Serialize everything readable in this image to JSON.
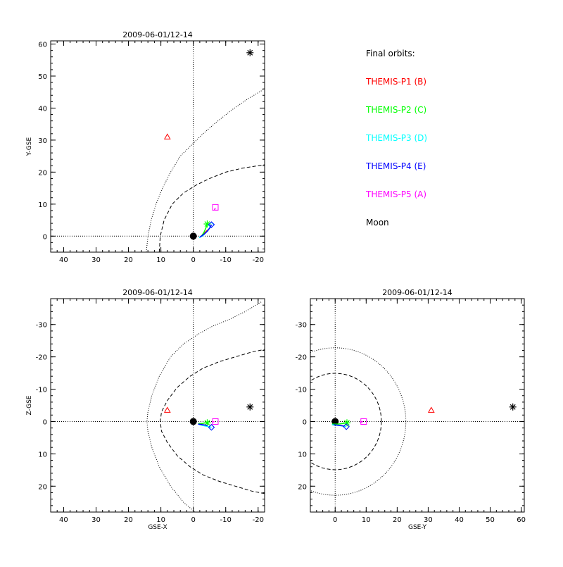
{
  "chart_data": [
    {
      "id": "xy",
      "type": "scatter",
      "title": "2009-06-01/12-14",
      "xlabel": "",
      "ylabel": "Y-GSE",
      "xlim": [
        44,
        -22
      ],
      "ylim": [
        61,
        -5
      ],
      "xticks": [
        40,
        30,
        20,
        10,
        0,
        -10,
        -20
      ],
      "yticks": [
        0,
        10,
        20,
        30,
        40,
        50,
        60
      ],
      "xtick_labels": [
        "40",
        "30",
        "20",
        "10",
        "0",
        "-10",
        "-20"
      ],
      "ytick_labels": [
        "0",
        "10",
        "20",
        "30",
        "40",
        "50",
        "60"
      ],
      "reference_lines": [
        {
          "axis": "x",
          "value": 0
        },
        {
          "axis": "y",
          "value": 0
        }
      ],
      "earth": [
        0,
        0
      ],
      "bow_shock": {
        "style": "dotted",
        "points": [
          [
            14.5,
            -5
          ],
          [
            14,
            0
          ],
          [
            13,
            5
          ],
          [
            11.5,
            10
          ],
          [
            9.5,
            15
          ],
          [
            7,
            20
          ],
          [
            4,
            25
          ],
          [
            0.5,
            28.5
          ],
          [
            -3,
            32
          ],
          [
            -7,
            35.5
          ],
          [
            -12,
            39.5
          ],
          [
            -17,
            43
          ],
          [
            -22,
            46
          ]
        ]
      },
      "magnetopause": {
        "style": "dashed",
        "points": [
          [
            10.5,
            -5
          ],
          [
            10.2,
            0
          ],
          [
            9,
            5
          ],
          [
            6.5,
            10
          ],
          [
            3,
            13.5
          ],
          [
            -1,
            16
          ],
          [
            -5,
            18
          ],
          [
            -10,
            20
          ],
          [
            -15,
            21.2
          ],
          [
            -20,
            22
          ],
          [
            -22,
            22.3
          ]
        ]
      },
      "orbits": [
        {
          "name": "THEMIS-P1",
          "color": "#ff0000",
          "points": [
            [
              -3,
              0.5
            ],
            [
              -4.5,
              2
            ]
          ],
          "marker": {
            "shape": "triangle",
            "at": [
              8,
              31
            ]
          }
        },
        {
          "name": "THEMIS-P2",
          "color": "#00ff00",
          "points": [
            [
              -2.5,
              0
            ],
            [
              -3.3,
              1.2
            ],
            [
              -3.9,
              2.6
            ],
            [
              -4.3,
              3.8
            ]
          ],
          "marker": {
            "shape": "asterisk",
            "at": [
              -4.3,
              3.8
            ]
          }
        },
        {
          "name": "THEMIS-P3",
          "color": "#00ffff",
          "points": [
            [
              -1.8,
              -0.5
            ],
            [
              -3,
              0.2
            ],
            [
              -4.2,
              1.4
            ],
            [
              -5.2,
              2.8
            ],
            [
              -5.5,
              3.5
            ]
          ],
          "marker": {
            "shape": "diamond",
            "at": [
              -5.5,
              3.5
            ]
          }
        },
        {
          "name": "THEMIS-P4",
          "color": "#0000ff",
          "points": [
            [
              -2,
              -0.3
            ],
            [
              -3.2,
              0.5
            ],
            [
              -4.4,
              1.6
            ],
            [
              -5.3,
              2.9
            ],
            [
              -5.6,
              3.6
            ]
          ],
          "marker": {
            "shape": "diamond",
            "at": [
              -5.6,
              3.6
            ]
          }
        },
        {
          "name": "THEMIS-P5",
          "color": "#ff00ff",
          "points": [
            [
              -6.5,
              8.2
            ],
            [
              -6.8,
              8.8
            ]
          ],
          "marker": {
            "shape": "square",
            "at": [
              -6.8,
              9
            ]
          }
        },
        {
          "name": "Moon",
          "color": "#000000",
          "points": [],
          "marker": {
            "shape": "asterisk",
            "at": [
              -17.5,
              57.3
            ]
          }
        }
      ]
    },
    {
      "id": "xz",
      "type": "scatter",
      "title": "2009-06-01/12-14",
      "xlabel": "GSE-X",
      "ylabel": "Z-GSE",
      "xlim": [
        44,
        -22
      ],
      "ylim": [
        -38,
        28
      ],
      "xticks": [
        40,
        30,
        20,
        10,
        0,
        -10,
        -20
      ],
      "yticks": [
        20,
        10,
        0,
        -10,
        -20,
        -30
      ],
      "xtick_labels": [
        "40",
        "30",
        "20",
        "10",
        "0",
        "-10",
        "-20"
      ],
      "ytick_labels": [
        "20",
        "10",
        "0",
        "-10",
        "-20",
        "-30"
      ],
      "reference_lines": [
        {
          "axis": "x",
          "value": 0
        },
        {
          "axis": "y",
          "value": 0
        }
      ],
      "earth": [
        0,
        0
      ],
      "bow_shock": {
        "style": "dotted",
        "points": [
          [
            -0.5,
            28
          ],
          [
            3,
            25
          ],
          [
            7,
            20
          ],
          [
            10.5,
            14
          ],
          [
            12.8,
            8
          ],
          [
            14,
            3
          ],
          [
            14.3,
            0
          ],
          [
            14,
            -3
          ],
          [
            12.8,
            -8
          ],
          [
            10.5,
            -14
          ],
          [
            7,
            -20
          ],
          [
            3,
            -24
          ],
          [
            -1.5,
            -27
          ],
          [
            -6,
            -29.5
          ],
          [
            -11,
            -31.5
          ],
          [
            -16,
            -34
          ],
          [
            -21,
            -37
          ]
        ]
      },
      "magnetopause": {
        "style": "dashed",
        "points": [
          [
            -22,
            22.3
          ],
          [
            -18,
            21.5
          ],
          [
            -13,
            20
          ],
          [
            -8,
            18.5
          ],
          [
            -3,
            16.5
          ],
          [
            1,
            14
          ],
          [
            5,
            10.5
          ],
          [
            8,
            6.5
          ],
          [
            9.8,
            3
          ],
          [
            10.2,
            0
          ],
          [
            9.8,
            -3
          ],
          [
            8,
            -6.5
          ],
          [
            5,
            -10.5
          ],
          [
            1,
            -14
          ],
          [
            -3,
            -16.5
          ],
          [
            -8,
            -18.5
          ],
          [
            -13,
            -20
          ],
          [
            -18,
            -21.5
          ],
          [
            -22,
            -22.3
          ]
        ]
      },
      "orbits": [
        {
          "name": "THEMIS-P1",
          "color": "#ff0000",
          "points": [],
          "marker": {
            "shape": "triangle",
            "at": [
              8,
              -3.5
            ]
          }
        },
        {
          "name": "THEMIS-P2",
          "color": "#00ff00",
          "points": [
            [
              -1.5,
              0.6
            ],
            [
              -2.8,
              0.6
            ],
            [
              -3.8,
              0.4
            ],
            [
              -4.3,
              0.4
            ]
          ],
          "marker": {
            "shape": "asterisk",
            "at": [
              -4.3,
              0.4
            ]
          }
        },
        {
          "name": "THEMIS-P3",
          "color": "#00ffff",
          "points": [
            [
              -1.5,
              0.8
            ],
            [
              -2.8,
              1.2
            ],
            [
              -4.2,
              1.5
            ],
            [
              -5.6,
              1.8
            ]
          ],
          "marker": {
            "shape": "diamond",
            "at": [
              -5.6,
              1.8
            ]
          }
        },
        {
          "name": "THEMIS-P4",
          "color": "#0000ff",
          "points": [
            [
              -1.5,
              0.8
            ],
            [
              -3,
              1
            ],
            [
              -4.4,
              1.2
            ]
          ],
          "marker": {
            "shape": "diamond",
            "at": [
              -5.6,
              1.8
            ]
          }
        },
        {
          "name": "THEMIS-P5",
          "color": "#ff00ff",
          "points": [
            [
              -5.8,
              0.2
            ],
            [
              -6.5,
              0
            ]
          ],
          "marker": {
            "shape": "square",
            "at": [
              -6.8,
              0
            ]
          }
        },
        {
          "name": "Moon",
          "color": "#000000",
          "points": [],
          "marker": {
            "shape": "asterisk",
            "at": [
              -17.5,
              -4.5
            ]
          }
        }
      ]
    },
    {
      "id": "yz",
      "type": "scatter",
      "title": "2009-06-01/12-14",
      "xlabel": "GSE-Y",
      "ylabel": "",
      "xlim": [
        -8,
        61
      ],
      "ylim": [
        -38,
        28
      ],
      "xticks": [
        0,
        10,
        20,
        30,
        40,
        50,
        60
      ],
      "yticks": [
        20,
        10,
        0,
        -10,
        -20,
        -30
      ],
      "xtick_labels": [
        "0",
        "10",
        "20",
        "30",
        "40",
        "50",
        "60"
      ],
      "ytick_labels": [
        "20",
        "10",
        "0",
        "-10",
        "-20",
        "-30"
      ],
      "reference_lines": [
        {
          "axis": "x",
          "value": 0
        },
        {
          "axis": "y",
          "value": 0
        }
      ],
      "earth": [
        0,
        0
      ],
      "bow_shock": {
        "style": "dotted",
        "circle": {
          "cx": 0,
          "cy": 0,
          "r": 22.8
        }
      },
      "magnetopause": {
        "style": "dashed",
        "circle": {
          "cx": 0,
          "cy": 0,
          "r": 14.9
        }
      },
      "orbits": [
        {
          "name": "THEMIS-P1",
          "color": "#ff0000",
          "points": [],
          "marker": {
            "shape": "triangle",
            "at": [
              31,
              -3.5
            ]
          }
        },
        {
          "name": "THEMIS-P2",
          "color": "#00ff00",
          "points": [
            [
              -1,
              0.8
            ],
            [
              1,
              0.8
            ],
            [
              2.5,
              0.6
            ],
            [
              3.8,
              0.4
            ]
          ],
          "marker": {
            "shape": "asterisk",
            "at": [
              3.8,
              0.4
            ]
          }
        },
        {
          "name": "THEMIS-P3",
          "color": "#00ffff",
          "points": [
            [
              -1,
              1
            ],
            [
              1,
              1.2
            ],
            [
              2.5,
              1.4
            ],
            [
              3.5,
              1.6
            ]
          ],
          "marker": {
            "shape": "diamond",
            "at": [
              3.6,
              1.6
            ]
          }
        },
        {
          "name": "THEMIS-P4",
          "color": "#0000ff",
          "points": [
            [
              -0.5,
              1
            ],
            [
              1.5,
              1.2
            ],
            [
              2.8,
              1.4
            ]
          ],
          "marker": {
            "shape": "diamond",
            "at": [
              3.6,
              1.6
            ]
          }
        },
        {
          "name": "THEMIS-P5",
          "color": "#ff00ff",
          "points": [
            [
              8,
              0.2
            ],
            [
              9,
              0
            ]
          ],
          "marker": {
            "shape": "square",
            "at": [
              9.2,
              0
            ]
          }
        },
        {
          "name": "Moon",
          "color": "#000000",
          "points": [],
          "marker": {
            "shape": "asterisk",
            "at": [
              57.3,
              -4.5
            ]
          }
        }
      ]
    }
  ],
  "legend": {
    "title": "Final orbits:",
    "entries": [
      {
        "label": "THEMIS-P1 (B)",
        "color": "#ff0000"
      },
      {
        "label": "THEMIS-P2 (C)",
        "color": "#00ff00"
      },
      {
        "label": "THEMIS-P3 (D)",
        "color": "#00ffff"
      },
      {
        "label": "THEMIS-P4 (E)",
        "color": "#0000ff"
      },
      {
        "label": "THEMIS-P5 (A)",
        "color": "#ff00ff"
      },
      {
        "label": "Moon",
        "color": "#000000"
      }
    ]
  }
}
